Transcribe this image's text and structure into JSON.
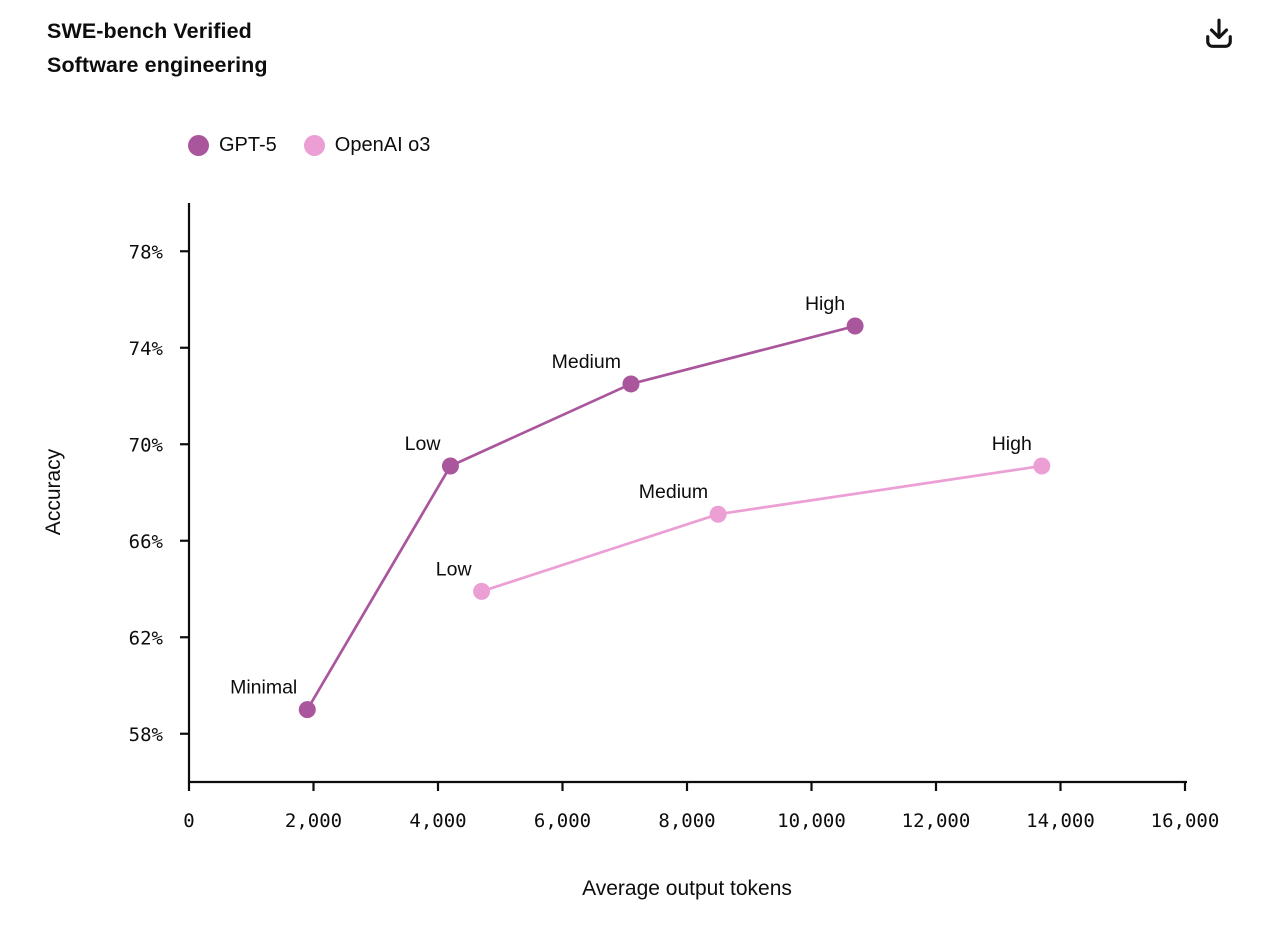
{
  "header": {
    "title_line1": "SWE-bench Verified",
    "title_line2": "Software engineering"
  },
  "toolbar": {
    "download_icon": "download-icon"
  },
  "chart_data": {
    "type": "line",
    "title": "SWE-bench Verified",
    "subtitle": "Software engineering",
    "xlabel": "Average output tokens",
    "ylabel": "Accuracy",
    "xlim": [
      0,
      16000
    ],
    "ylim": [
      56,
      80
    ],
    "grid": false,
    "legend_position": "top-left",
    "x_ticks": [
      0,
      2000,
      4000,
      6000,
      8000,
      10000,
      12000,
      14000,
      16000
    ],
    "x_tick_labels": [
      "0",
      "2,000",
      "4,000",
      "6,000",
      "8,000",
      "10,000",
      "12,000",
      "14,000",
      "16,000"
    ],
    "y_ticks": [
      58,
      62,
      66,
      70,
      74,
      78
    ],
    "y_tick_labels": [
      "58%",
      "62%",
      "66%",
      "70%",
      "74%",
      "78%"
    ],
    "series": [
      {
        "name": "GPT-5",
        "color": "#a9569d",
        "points": [
          {
            "label": "Minimal",
            "x": 1900,
            "y": 59.0
          },
          {
            "label": "Low",
            "x": 4200,
            "y": 69.1
          },
          {
            "label": "Medium",
            "x": 7100,
            "y": 72.5
          },
          {
            "label": "High",
            "x": 10700,
            "y": 74.9
          }
        ]
      },
      {
        "name": "OpenAI o3",
        "color": "#ec9fd4",
        "points": [
          {
            "label": "Low",
            "x": 4700,
            "y": 63.9
          },
          {
            "label": "Medium",
            "x": 8500,
            "y": 67.1
          },
          {
            "label": "High",
            "x": 13700,
            "y": 69.1
          }
        ]
      }
    ]
  }
}
